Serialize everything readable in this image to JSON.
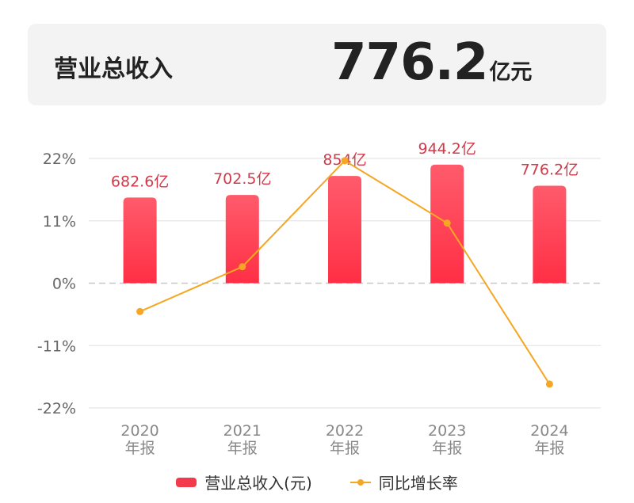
{
  "header": {
    "title": "营业总收入",
    "value": "776.2",
    "unit": "亿元"
  },
  "chart_data": {
    "type": "bar+line",
    "categories": [
      "2020\n年报",
      "2021\n年报",
      "2022\n年报",
      "2023\n年报",
      "2024\n年报"
    ],
    "category_years": [
      "2020",
      "2021",
      "2022",
      "2023",
      "2024"
    ],
    "category_suffix": "年报",
    "series": [
      {
        "name": "营业总收入(元)",
        "type": "bar",
        "values": [
          682.6,
          702.5,
          854,
          944.2,
          776.2
        ],
        "labels": [
          "682.6亿",
          "702.5亿",
          "854亿",
          "944.2亿",
          "776.2亿"
        ],
        "color": "#f23a4c"
      },
      {
        "name": "同比增长率",
        "type": "line",
        "values": [
          -5.0,
          2.9,
          21.6,
          10.6,
          -17.8
        ],
        "unit": "%",
        "color": "#f5a623"
      }
    ],
    "y_ticks": [
      "22%",
      "11%",
      "0%",
      "-11%",
      "-22%"
    ],
    "ylim": [
      -22,
      22
    ],
    "grid": true,
    "legend": "bottom"
  }
}
